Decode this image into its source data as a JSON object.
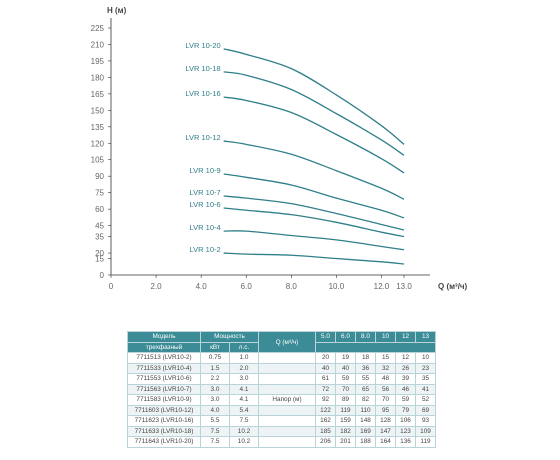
{
  "chart_data": {
    "type": "line",
    "ylabel": "H (м)",
    "xlabel": "Q (м³/ч)",
    "xlim": [
      0,
      13
    ],
    "ylim": [
      0,
      225
    ],
    "xticks": [
      "0",
      "2.0",
      "4.0",
      "6.0",
      "8.0",
      "10.0",
      "12.0",
      "13.0"
    ],
    "xtick_values": [
      0,
      2,
      4,
      6,
      8,
      10,
      12,
      13
    ],
    "yticks": [
      0,
      15,
      20,
      35,
      45,
      60,
      75,
      90,
      105,
      120,
      135,
      150,
      165,
      180,
      195,
      210,
      225
    ],
    "ytick_labels": [
      "0",
      "15",
      "20",
      "35",
      "45",
      "60",
      "75",
      "90",
      "105",
      "120",
      "135",
      "150",
      "165",
      "180",
      "195",
      "210",
      "225"
    ],
    "grid": false,
    "color": "#2f7f8a",
    "x": [
      5.0,
      6.0,
      8.0,
      10,
      12,
      13
    ],
    "series": [
      {
        "name": "LVR 10-2",
        "values": [
          20,
          19,
          18,
          15,
          12,
          10
        ]
      },
      {
        "name": "LVR 10-4",
        "values": [
          40,
          40,
          36,
          32,
          26,
          23
        ]
      },
      {
        "name": "LVR 10-6",
        "values": [
          61,
          59,
          55,
          48,
          39,
          35
        ]
      },
      {
        "name": "LVR 10-7",
        "values": [
          72,
          70,
          65,
          56,
          46,
          41
        ]
      },
      {
        "name": "LVR 10-9",
        "values": [
          92,
          89,
          82,
          70,
          59,
          52
        ]
      },
      {
        "name": "LVR 10-12",
        "values": [
          122,
          119,
          110,
          95,
          79,
          69
        ]
      },
      {
        "name": "LVR 10-16",
        "values": [
          162,
          159,
          148,
          128,
          106,
          93
        ]
      },
      {
        "name": "LVR 10-18",
        "values": [
          185,
          182,
          169,
          147,
          123,
          109
        ]
      },
      {
        "name": "LVR 10-20",
        "values": [
          206,
          201,
          188,
          164,
          136,
          119
        ]
      }
    ]
  },
  "table": {
    "header_model": "Модель",
    "header_model_sub": "трехфазный",
    "header_power": "Мощность",
    "header_kw": "кВт",
    "header_hp": "л.с.",
    "header_q": "Q (м³/ч)",
    "q_values": [
      "5.0",
      "6.0",
      "8.0",
      "10",
      "12",
      "13"
    ],
    "head_label": "Напор (м)",
    "rows": [
      {
        "model": "7711513 (LVR10-2)",
        "kw": "0.75",
        "hp": "1.0",
        "h": [
          "20",
          "19",
          "18",
          "15",
          "12",
          "10"
        ]
      },
      {
        "model": "7711533 (LVR10-4)",
        "kw": "1.5",
        "hp": "2.0",
        "h": [
          "40",
          "40",
          "36",
          "32",
          "26",
          "23"
        ]
      },
      {
        "model": "7711553 (LVR10-6)",
        "kw": "2.2",
        "hp": "3.0",
        "h": [
          "61",
          "59",
          "55",
          "48",
          "39",
          "35"
        ]
      },
      {
        "model": "7711563 (LVR10-7)",
        "kw": "3.0",
        "hp": "4.1",
        "h": [
          "72",
          "70",
          "65",
          "56",
          "46",
          "41"
        ]
      },
      {
        "model": "7711583 (LVR10-9)",
        "kw": "3.0",
        "hp": "4.1",
        "h": [
          "92",
          "89",
          "82",
          "70",
          "59",
          "52"
        ]
      },
      {
        "model": "7711603 (LVR10-12)",
        "kw": "4.0",
        "hp": "5.4",
        "h": [
          "122",
          "119",
          "110",
          "95",
          "79",
          "69"
        ]
      },
      {
        "model": "7711623 (LVR10-16)",
        "kw": "5.5",
        "hp": "7.5",
        "h": [
          "162",
          "159",
          "148",
          "128",
          "106",
          "93"
        ]
      },
      {
        "model": "7711633 (LVR10-18)",
        "kw": "7.5",
        "hp": "10.2",
        "h": [
          "185",
          "182",
          "169",
          "147",
          "123",
          "109"
        ]
      },
      {
        "model": "7711643 (LVR10-20)",
        "kw": "7.5",
        "hp": "10.2",
        "h": [
          "206",
          "201",
          "188",
          "164",
          "136",
          "119"
        ]
      }
    ]
  }
}
